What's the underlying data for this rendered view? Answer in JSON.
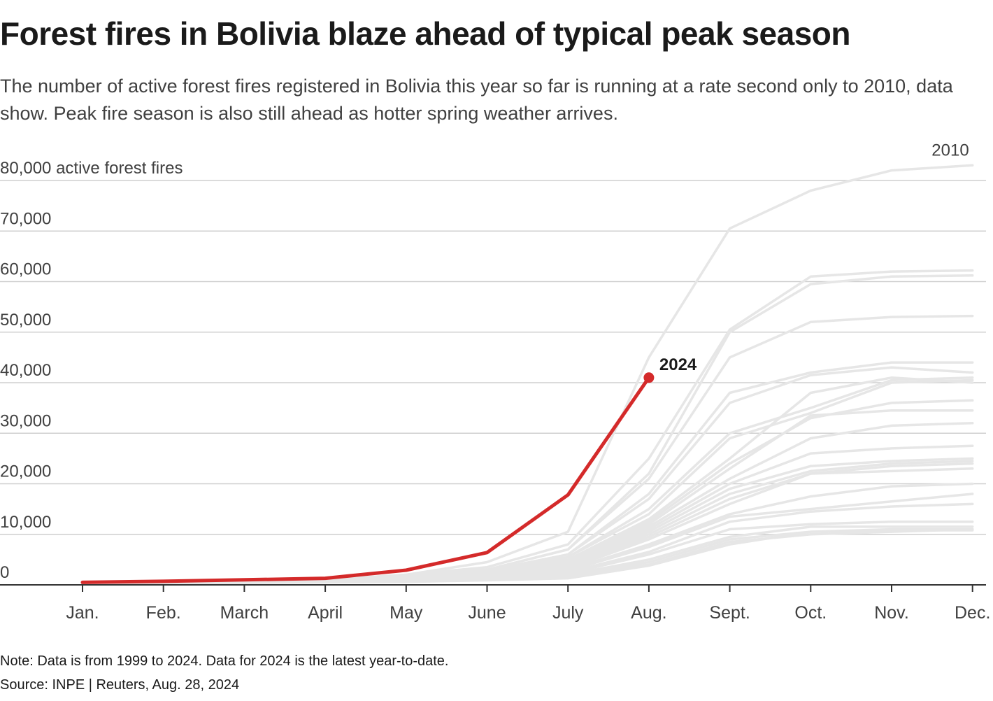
{
  "title": "Forest fires in Bolivia blaze ahead of typical peak season",
  "subtitle": "The number of active forest fires registered in Bolivia this year so far is running at a rate second only to 2010, data show. Peak fire season is also still ahead as hotter spring weather arrives.",
  "note": "Note: Data is from 1999 to 2024. Data for 2024 is the latest year-to-date.",
  "source": "Source: INPE | Reuters, Aug. 28, 2024",
  "colors": {
    "highlight": "#d42a2a",
    "background_series": "#e6e6e6",
    "grid": "#cfcfcf",
    "axis": "#333333"
  },
  "chart_data": {
    "type": "line",
    "title": "Forest fires in Bolivia blaze ahead of typical peak season",
    "ylabel": "active forest fires",
    "ylim": [
      0,
      80000
    ],
    "yticks": [
      0,
      10000,
      20000,
      30000,
      40000,
      50000,
      60000,
      70000,
      80000
    ],
    "ytick_labels": [
      "0",
      "10,000",
      "20,000",
      "30,000",
      "40,000",
      "50,000",
      "60,000",
      "70,000",
      "80,000 active forest fires"
    ],
    "categories": [
      "Jan.",
      "Feb.",
      "March",
      "April",
      "May",
      "June",
      "July",
      "Aug.",
      "Sept.",
      "Oct.",
      "Nov.",
      "Dec."
    ],
    "highlight_series": {
      "name": "2024",
      "values": [
        500,
        700,
        1000,
        1300,
        2900,
        6400,
        17800,
        41000
      ],
      "label": "2024"
    },
    "labeled_background": {
      "name": "2010",
      "label": "2010"
    },
    "background_series": [
      {
        "name": "2010",
        "values": [
          300,
          500,
          700,
          1000,
          2000,
          4500,
          10500,
          45000,
          70500,
          78000,
          82000,
          83000
        ]
      },
      {
        "name": "bg-a",
        "values": [
          300,
          500,
          700,
          1000,
          2000,
          3500,
          8000,
          25000,
          50500,
          61000,
          62000,
          62200
        ]
      },
      {
        "name": "bg-b",
        "values": [
          300,
          500,
          700,
          1000,
          1800,
          3000,
          7000,
          22000,
          50000,
          59500,
          61000,
          61200
        ]
      },
      {
        "name": "bg-c",
        "values": [
          300,
          500,
          700,
          1000,
          1800,
          3000,
          7000,
          21000,
          45000,
          52000,
          53000,
          53200
        ]
      },
      {
        "name": "bg-d",
        "values": [
          300,
          500,
          700,
          1000,
          1600,
          2800,
          6000,
          18000,
          38000,
          42000,
          44000,
          44000
        ]
      },
      {
        "name": "bg-e",
        "values": [
          300,
          500,
          700,
          1000,
          1600,
          2800,
          6000,
          17000,
          36000,
          41500,
          43000,
          42000
        ]
      },
      {
        "name": "bg-f",
        "values": [
          300,
          500,
          700,
          900,
          1500,
          2500,
          5500,
          15000,
          30000,
          35000,
          40500,
          41000
        ]
      },
      {
        "name": "bg-g",
        "values": [
          300,
          500,
          700,
          900,
          1500,
          2500,
          5500,
          14000,
          29000,
          34000,
          40000,
          40500
        ]
      },
      {
        "name": "bg-h",
        "values": [
          300,
          500,
          700,
          900,
          1400,
          2400,
          5000,
          13000,
          25000,
          38000,
          41000,
          40000
        ]
      },
      {
        "name": "bg-i",
        "values": [
          300,
          500,
          700,
          900,
          1400,
          2400,
          5000,
          12500,
          24000,
          33000,
          36000,
          36500
        ]
      },
      {
        "name": "bg-j",
        "values": [
          300,
          500,
          700,
          900,
          1300,
          2200,
          4800,
          12000,
          23000,
          33500,
          34500,
          34500
        ]
      },
      {
        "name": "bg-k",
        "values": [
          300,
          500,
          700,
          900,
          1300,
          2200,
          4500,
          11500,
          21000,
          29000,
          31500,
          32000
        ]
      },
      {
        "name": "bg-l",
        "values": [
          300,
          500,
          700,
          900,
          1200,
          2000,
          4200,
          11000,
          20000,
          26000,
          27000,
          27500
        ]
      },
      {
        "name": "bg-m",
        "values": [
          300,
          500,
          700,
          900,
          1200,
          2000,
          4000,
          10500,
          19000,
          23500,
          24500,
          25000
        ]
      },
      {
        "name": "bg-n",
        "values": [
          300,
          500,
          600,
          800,
          1100,
          1800,
          3800,
          10000,
          18000,
          22500,
          24000,
          24500
        ]
      },
      {
        "name": "bg-o",
        "values": [
          300,
          500,
          600,
          800,
          1100,
          1800,
          3500,
          9500,
          17000,
          22000,
          23500,
          24000
        ]
      },
      {
        "name": "bg-p",
        "values": [
          300,
          500,
          600,
          800,
          1000,
          1600,
          3200,
          9000,
          16000,
          22000,
          22500,
          23000
        ]
      },
      {
        "name": "bg-q",
        "values": [
          300,
          400,
          600,
          800,
          1000,
          1600,
          3000,
          8000,
          14000,
          17500,
          19500,
          20000
        ]
      },
      {
        "name": "bg-r",
        "values": [
          300,
          400,
          600,
          700,
          900,
          1400,
          2800,
          7500,
          13500,
          15000,
          16500,
          18000
        ]
      },
      {
        "name": "bg-s",
        "values": [
          300,
          400,
          600,
          700,
          900,
          1400,
          2500,
          6500,
          12500,
          14500,
          15500,
          16000
        ]
      },
      {
        "name": "bg-t",
        "values": [
          200,
          400,
          500,
          700,
          800,
          1200,
          2200,
          6000,
          11000,
          12000,
          12500,
          12500
        ]
      },
      {
        "name": "bg-u",
        "values": [
          200,
          400,
          500,
          700,
          800,
          1200,
          2000,
          5000,
          9500,
          11500,
          11500,
          11500
        ]
      },
      {
        "name": "bg-v",
        "values": [
          200,
          300,
          500,
          600,
          700,
          1000,
          1800,
          4500,
          9000,
          10500,
          11000,
          11000
        ]
      },
      {
        "name": "bg-w",
        "values": [
          200,
          300,
          400,
          600,
          700,
          1000,
          1500,
          4000,
          8500,
          10000,
          10500,
          11000
        ]
      },
      {
        "name": "bg-x",
        "values": [
          200,
          300,
          400,
          500,
          600,
          900,
          1300,
          3800,
          8000,
          10500,
          10800,
          10800
        ]
      }
    ]
  }
}
